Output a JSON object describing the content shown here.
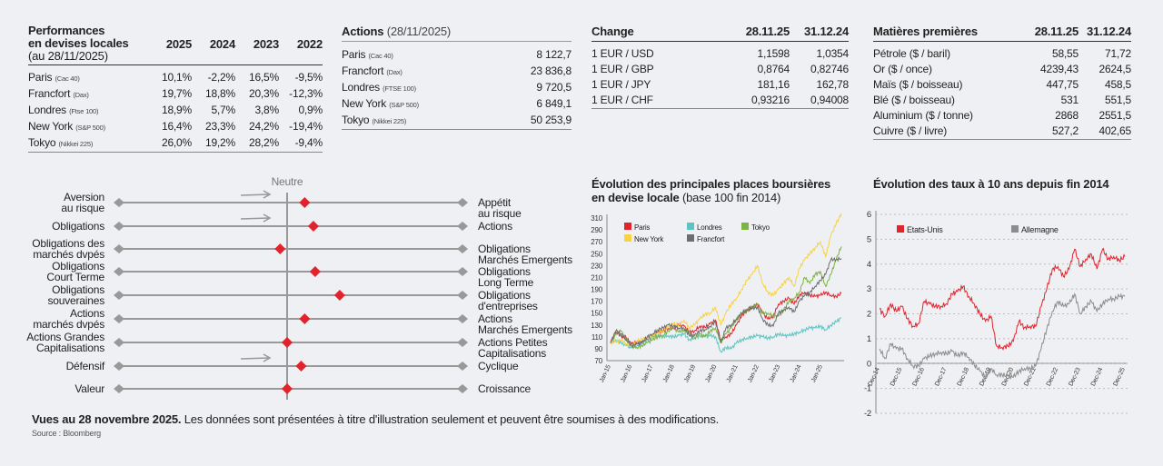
{
  "performances": {
    "title_lines": [
      "Performances",
      "en devises locales"
    ],
    "subtitle": "(au 28/11/2025)",
    "years": [
      "2025",
      "2024",
      "2023",
      "2022"
    ],
    "rows": [
      {
        "name": "Paris",
        "index": "(Cac 40)",
        "values": [
          "10,1%",
          "-2,2%",
          "16,5%",
          "-9,5%"
        ]
      },
      {
        "name": "Francfort",
        "index": "(Dax)",
        "values": [
          "19,7%",
          "18,8%",
          "20,3%",
          "-12,3%"
        ]
      },
      {
        "name": "Londres",
        "index": "(Ftse 100)",
        "values": [
          "18,9%",
          "5,7%",
          "3,8%",
          "0,9%"
        ]
      },
      {
        "name": "New York",
        "index": "(S&P 500)",
        "values": [
          "16,4%",
          "23,3%",
          "24,2%",
          "-19,4%"
        ]
      },
      {
        "name": "Tokyo",
        "index": "(Nikkei 225)",
        "values": [
          "26,0%",
          "19,2%",
          "28,2%",
          "-9,4%"
        ]
      }
    ]
  },
  "actions": {
    "title": "Actions",
    "date": "(28/11/2025)",
    "rows": [
      {
        "name": "Paris",
        "index": "(Cac 40)",
        "value": "8 122,7"
      },
      {
        "name": "Francfort",
        "index": "(Dax)",
        "value": "23 836,8"
      },
      {
        "name": "Londres",
        "index": "(FTSE 100)",
        "value": "9 720,5"
      },
      {
        "name": "New York",
        "index": "(S&P 500)",
        "value": "6 849,1"
      },
      {
        "name": "Tokyo",
        "index": "(Nikkei 225)",
        "value": "50 253,9"
      }
    ]
  },
  "change": {
    "title": "Change",
    "cols": [
      "28.11.25",
      "31.12.24"
    ],
    "rows": [
      {
        "name": "1 EUR / USD",
        "values": [
          "1,1598",
          "1,0354"
        ]
      },
      {
        "name": "1 EUR / GBP",
        "values": [
          "0,8764",
          "0,82746"
        ]
      },
      {
        "name": "1 EUR / JPY",
        "values": [
          "181,16",
          "162,78"
        ]
      },
      {
        "name": "1 EUR / CHF",
        "values": [
          "0,93216",
          "0,94008"
        ]
      }
    ]
  },
  "commodities": {
    "title": "Matières premières",
    "cols": [
      "28.11.25",
      "31.12.24"
    ],
    "rows": [
      {
        "name": "Pétrole ($ / baril)",
        "values": [
          "58,55",
          "71,72"
        ]
      },
      {
        "name": "Or ($ / once)",
        "values": [
          "4239,43",
          "2624,5"
        ]
      },
      {
        "name": "Maïs ($ / boisseau)",
        "values": [
          "447,75",
          "458,5"
        ]
      },
      {
        "name": "Blé ($ / boisseau)",
        "values": [
          "531",
          "551,5"
        ]
      },
      {
        "name": "Aluminium ($ / tonne)",
        "values": [
          "2868",
          "2551,5"
        ]
      },
      {
        "name": "Cuivre ($ / livre)",
        "values": [
          "527,2",
          "402,65"
        ]
      }
    ]
  },
  "views": {
    "neutral_label": "Neutre",
    "rows": [
      {
        "left": [
          "Aversion",
          "au risque"
        ],
        "right": [
          "Appétit",
          "au risque"
        ],
        "position": 0.1,
        "arrow": true
      },
      {
        "left": [
          "Obligations"
        ],
        "right": [
          "Actions"
        ],
        "position": 0.15,
        "arrow": true
      },
      {
        "left": [
          "Obligations des",
          "marchés dvpés"
        ],
        "right": [
          "Obligations",
          "Marchés Emergents"
        ],
        "position": -0.04,
        "arrow": false
      },
      {
        "left": [
          "Obligations",
          "Court Terme"
        ],
        "right": [
          "Obligations",
          "Long Terme"
        ],
        "position": 0.16,
        "arrow": false
      },
      {
        "left": [
          "Obligations",
          "souveraines"
        ],
        "right": [
          "Obligations",
          "d'entreprises"
        ],
        "position": 0.3,
        "arrow": false
      },
      {
        "left": [
          "Actions",
          "marchés dvpés"
        ],
        "right": [
          "Actions",
          "Marchés Emergents"
        ],
        "position": 0.1,
        "arrow": false
      },
      {
        "left": [
          "Actions Grandes",
          "Capitalisations"
        ],
        "right": [
          "Actions Petites",
          "Capitalisations"
        ],
        "position": 0.0,
        "arrow": false
      },
      {
        "left": [
          "Défensif"
        ],
        "right": [
          "Cyclique"
        ],
        "position": 0.08,
        "arrow": true
      },
      {
        "left": [
          "Valeur"
        ],
        "right": [
          "Croissance"
        ],
        "position": 0.0,
        "arrow": false
      }
    ],
    "marker_color": "#e3232c",
    "line_color": "#999999"
  },
  "footer": {
    "bold": "Vues au 28 novembre 2025.",
    "text": " Les données sont présentées à titre d'illustration seulement et peuvent être soumises à des modifications.",
    "source": "Source : Bloomberg"
  },
  "chart_data": [
    {
      "type": "line",
      "title": "Évolution des principales places boursières en devise locale",
      "title_lines": [
        "Évolution des principales places boursières",
        "en devise locale"
      ],
      "subtitle": "(base 100 fin 2014)",
      "ylim": [
        70,
        310
      ],
      "yticks": [
        70,
        90,
        110,
        130,
        150,
        170,
        190,
        210,
        230,
        250,
        270,
        290,
        310
      ],
      "xtick_labels": [
        "Jan-15",
        "Jan-16",
        "Jan-17",
        "Jan-18",
        "Jan-19",
        "Jan-20",
        "Jan-21",
        "Jan-22",
        "Jan-23",
        "Jan-24",
        "Jan-25"
      ],
      "x": [
        "2015-01",
        "2015-04",
        "2015-07",
        "2015-10",
        "2016-01",
        "2016-04",
        "2016-07",
        "2016-10",
        "2017-01",
        "2017-04",
        "2017-07",
        "2017-10",
        "2018-01",
        "2018-04",
        "2018-07",
        "2018-10",
        "2019-01",
        "2019-04",
        "2019-07",
        "2019-10",
        "2020-01",
        "2020-04",
        "2020-07",
        "2020-10",
        "2021-01",
        "2021-04",
        "2021-07",
        "2021-10",
        "2022-01",
        "2022-04",
        "2022-07",
        "2022-10",
        "2023-01",
        "2023-04",
        "2023-07",
        "2023-10",
        "2024-01",
        "2024-04",
        "2024-07",
        "2024-10",
        "2025-01",
        "2025-04",
        "2025-07",
        "2025-10",
        "2025-11"
      ],
      "legend": "top-left",
      "grid": false,
      "series": [
        {
          "name": "Paris",
          "color": "#e3232c",
          "values": [
            100,
            118,
            112,
            108,
            98,
            100,
            103,
            106,
            110,
            118,
            120,
            124,
            125,
            130,
            128,
            118,
            120,
            128,
            126,
            132,
            138,
            105,
            110,
            115,
            130,
            145,
            155,
            160,
            165,
            150,
            140,
            145,
            165,
            170,
            175,
            165,
            180,
            185,
            180,
            178,
            180,
            185,
            180,
            178,
            183
          ]
        },
        {
          "name": "Londres",
          "color": "#5cc4c0",
          "values": [
            100,
            105,
            100,
            95,
            92,
            95,
            100,
            105,
            110,
            112,
            110,
            112,
            110,
            112,
            115,
            105,
            108,
            112,
            110,
            112,
            110,
            85,
            92,
            90,
            100,
            105,
            108,
            110,
            112,
            110,
            108,
            110,
            115,
            112,
            112,
            115,
            118,
            122,
            125,
            125,
            128,
            122,
            130,
            135,
            142
          ]
        },
        {
          "name": "Tokyo",
          "color": "#7cb342",
          "values": [
            100,
            115,
            120,
            105,
            95,
            92,
            95,
            100,
            105,
            110,
            113,
            120,
            125,
            118,
            122,
            118,
            108,
            115,
            110,
            120,
            125,
            100,
            115,
            125,
            140,
            150,
            155,
            160,
            165,
            150,
            150,
            145,
            145,
            155,
            170,
            175,
            185,
            210,
            200,
            215,
            220,
            195,
            215,
            240,
            262
          ]
        },
        {
          "name": "New York",
          "color": "#f7d340",
          "values": [
            100,
            102,
            104,
            98,
            95,
            103,
            106,
            108,
            112,
            117,
            120,
            126,
            132,
            130,
            138,
            125,
            130,
            140,
            148,
            150,
            160,
            130,
            150,
            165,
            175,
            190,
            205,
            215,
            230,
            200,
            185,
            180,
            190,
            200,
            210,
            195,
            225,
            240,
            250,
            260,
            270,
            245,
            280,
            300,
            318
          ]
        },
        {
          "name": "Francfort",
          "color": "#6d6d6d",
          "values": [
            100,
            120,
            115,
            105,
            95,
            98,
            100,
            110,
            115,
            122,
            125,
            130,
            128,
            125,
            125,
            112,
            112,
            120,
            122,
            128,
            135,
            100,
            125,
            130,
            140,
            150,
            155,
            158,
            160,
            140,
            130,
            128,
            150,
            155,
            160,
            152,
            170,
            180,
            185,
            195,
            205,
            215,
            240,
            240,
            242
          ]
        }
      ]
    },
    {
      "type": "line",
      "title": "Évolution des taux à 10 ans depuis fin 2014",
      "ylim": [
        -2,
        6
      ],
      "yticks": [
        -2,
        -1,
        0,
        1,
        2,
        3,
        4,
        5,
        6
      ],
      "xtick_labels": [
        "Dec-14",
        "Dec-15",
        "Dec-16",
        "Dec-17",
        "Dec-18",
        "Dec-19",
        "Dec-20",
        "Dec-21",
        "Dec-22",
        "Dec-23",
        "Dec-24",
        "Dec-25"
      ],
      "x": [
        "2014-12",
        "2015-03",
        "2015-06",
        "2015-09",
        "2015-12",
        "2016-03",
        "2016-06",
        "2016-09",
        "2016-12",
        "2017-03",
        "2017-06",
        "2017-09",
        "2017-12",
        "2018-03",
        "2018-06",
        "2018-09",
        "2018-12",
        "2019-03",
        "2019-06",
        "2019-09",
        "2019-12",
        "2020-03",
        "2020-06",
        "2020-09",
        "2020-12",
        "2021-03",
        "2021-06",
        "2021-09",
        "2021-12",
        "2022-03",
        "2022-06",
        "2022-09",
        "2022-12",
        "2023-03",
        "2023-06",
        "2023-09",
        "2023-12",
        "2024-03",
        "2024-06",
        "2024-09",
        "2024-12",
        "2025-03",
        "2025-06",
        "2025-09",
        "2025-11"
      ],
      "legend": "top-left",
      "grid": true,
      "series": [
        {
          "name": "Etats-Unis",
          "color": "#e3232c",
          "values": [
            2.2,
            1.9,
            2.4,
            2.1,
            2.3,
            1.8,
            1.5,
            1.6,
            2.5,
            2.4,
            2.3,
            2.3,
            2.4,
            2.8,
            2.9,
            3.1,
            2.7,
            2.4,
            2.0,
            1.7,
            1.9,
            0.7,
            0.65,
            0.7,
            0.9,
            1.7,
            1.45,
            1.5,
            1.5,
            2.3,
            3.0,
            3.8,
            3.9,
            3.5,
            3.8,
            4.6,
            3.9,
            4.2,
            4.4,
            3.8,
            4.6,
            4.2,
            4.3,
            4.15,
            4.3
          ]
        },
        {
          "name": "Allemagne",
          "color": "#8c8c8c",
          "values": [
            0.6,
            0.2,
            0.8,
            0.6,
            0.6,
            0.2,
            -0.1,
            -0.1,
            0.2,
            0.3,
            0.4,
            0.45,
            0.4,
            0.5,
            0.3,
            0.45,
            0.25,
            -0.05,
            -0.3,
            -0.55,
            -0.2,
            -0.45,
            -0.45,
            -0.5,
            -0.55,
            -0.3,
            -0.2,
            -0.2,
            -0.1,
            0.6,
            1.4,
            2.1,
            2.5,
            2.3,
            2.4,
            2.8,
            2.0,
            2.3,
            2.5,
            2.1,
            2.4,
            2.6,
            2.6,
            2.7,
            2.7
          ]
        }
      ]
    }
  ]
}
